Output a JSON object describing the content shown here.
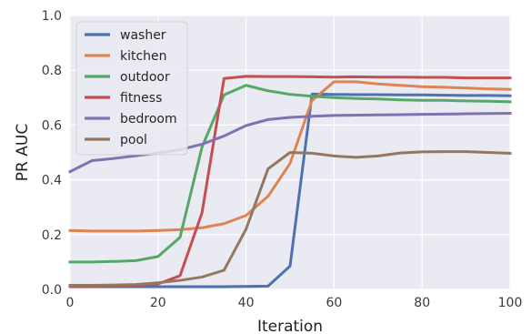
{
  "chart_data": {
    "type": "line",
    "title": "",
    "xlabel": "Iteration",
    "ylabel": "PR AUC",
    "xlim": [
      0,
      100
    ],
    "ylim": [
      0.0,
      1.0
    ],
    "xticks": [
      "0",
      "20",
      "40",
      "60",
      "80",
      "100"
    ],
    "yticks": [
      "0.0",
      "0.2",
      "0.4",
      "0.6",
      "0.8",
      "1.0"
    ],
    "grid": true,
    "background": "#eaeaf2",
    "legend_position": "upper-left",
    "x": [
      0,
      5,
      10,
      15,
      20,
      25,
      30,
      35,
      40,
      45,
      50,
      55,
      60,
      65,
      70,
      75,
      80,
      85,
      90,
      95,
      100
    ],
    "series": [
      {
        "name": "washer",
        "color": "#4c72b0",
        "values": [
          0.01,
          0.01,
          0.01,
          0.01,
          0.01,
          0.01,
          0.01,
          0.01,
          0.011,
          0.012,
          0.085,
          0.713,
          0.712,
          0.711,
          0.711,
          0.71,
          0.71,
          0.709,
          0.708,
          0.708,
          0.707
        ]
      },
      {
        "name": "kitchen",
        "color": "#dd8452",
        "values": [
          0.215,
          0.213,
          0.213,
          0.213,
          0.215,
          0.218,
          0.225,
          0.24,
          0.27,
          0.34,
          0.46,
          0.69,
          0.758,
          0.758,
          0.75,
          0.745,
          0.74,
          0.738,
          0.735,
          0.732,
          0.73
        ]
      },
      {
        "name": "outdoor",
        "color": "#55a868",
        "values": [
          0.1,
          0.1,
          0.102,
          0.105,
          0.12,
          0.19,
          0.52,
          0.71,
          0.745,
          0.725,
          0.712,
          0.705,
          0.7,
          0.697,
          0.695,
          0.692,
          0.69,
          0.69,
          0.688,
          0.687,
          0.685
        ]
      },
      {
        "name": "fitness",
        "color": "#c44e52",
        "values": [
          0.01,
          0.01,
          0.012,
          0.015,
          0.02,
          0.05,
          0.28,
          0.77,
          0.778,
          0.777,
          0.777,
          0.776,
          0.775,
          0.776,
          0.775,
          0.775,
          0.774,
          0.774,
          0.772,
          0.772,
          0.772
        ]
      },
      {
        "name": "bedroom",
        "color": "#8172b3",
        "values": [
          0.43,
          0.47,
          0.478,
          0.488,
          0.498,
          0.51,
          0.53,
          0.56,
          0.598,
          0.62,
          0.628,
          0.632,
          0.635,
          0.636,
          0.637,
          0.638,
          0.639,
          0.64,
          0.641,
          0.642,
          0.643
        ]
      },
      {
        "name": "pool",
        "color": "#937860",
        "values": [
          0.015,
          0.015,
          0.016,
          0.018,
          0.024,
          0.033,
          0.045,
          0.07,
          0.22,
          0.44,
          0.5,
          0.497,
          0.487,
          0.482,
          0.487,
          0.498,
          0.502,
          0.503,
          0.503,
          0.5,
          0.497
        ]
      }
    ]
  }
}
